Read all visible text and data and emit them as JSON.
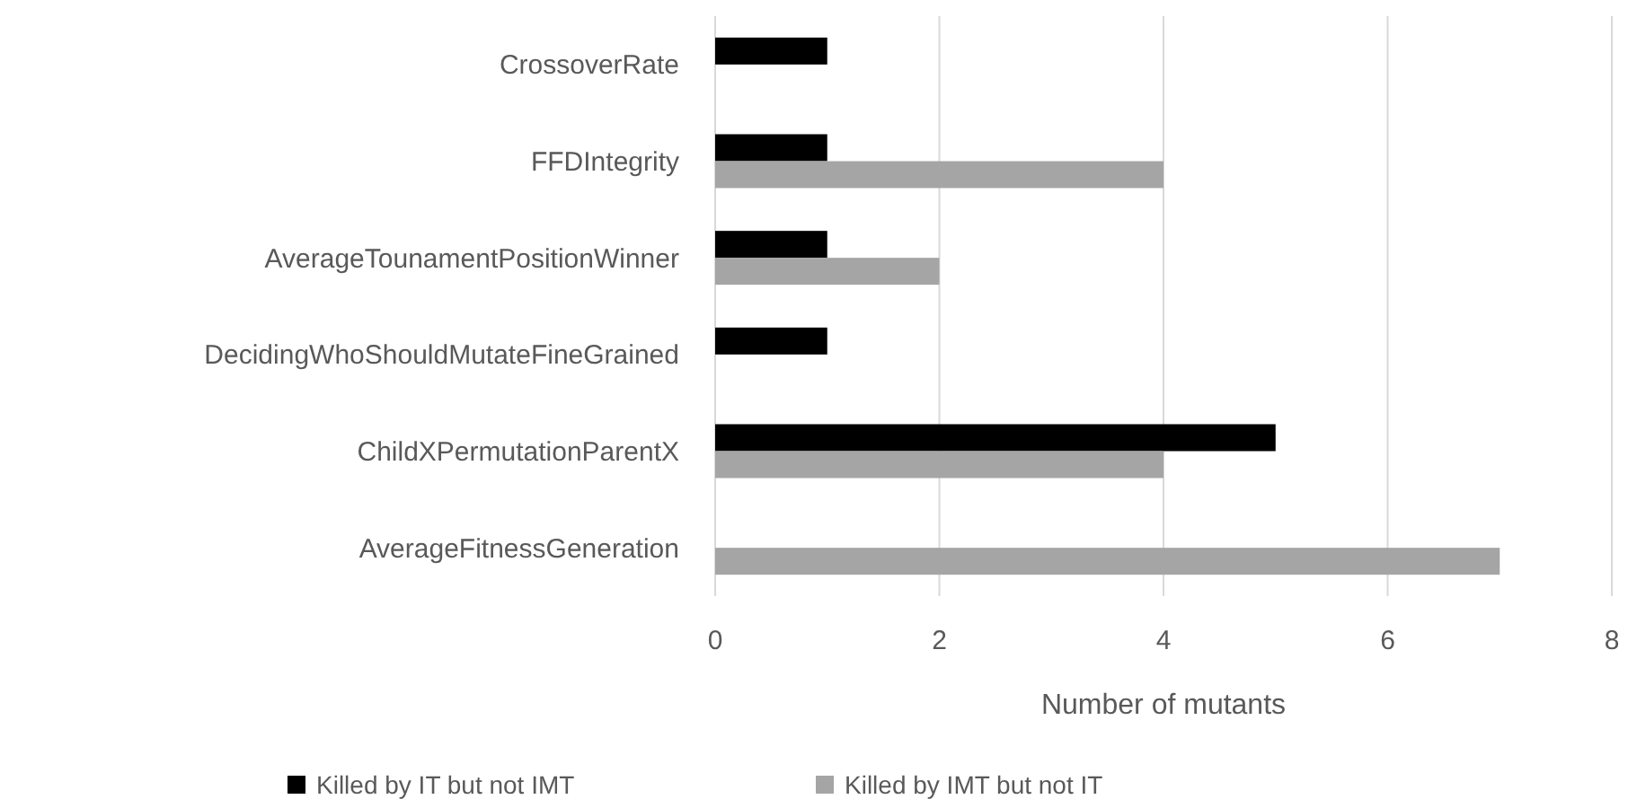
{
  "chart_data": {
    "type": "bar",
    "orientation": "horizontal",
    "categories": [
      "CrossoverRate",
      "FFDIntegrity",
      "AverageTounamentPositionWinner",
      "DecidingWhoShouldMutateFineGrained",
      "ChildXPermutationParentX",
      "AverageFitnessGeneration"
    ],
    "series": [
      {
        "name": "Killed by IT but not IMT",
        "color": "#000000",
        "values": [
          1,
          1,
          1,
          1,
          5,
          null
        ]
      },
      {
        "name": "Killed by IMT but not IT",
        "color": "#a5a5a5",
        "values": [
          null,
          4,
          2,
          null,
          4,
          7
        ]
      }
    ],
    "xlabel": "Number of mutants",
    "xlim": [
      0,
      8
    ],
    "xticks": [
      0,
      2,
      4,
      6,
      8
    ],
    "grid": "x",
    "legend": "bottom"
  }
}
